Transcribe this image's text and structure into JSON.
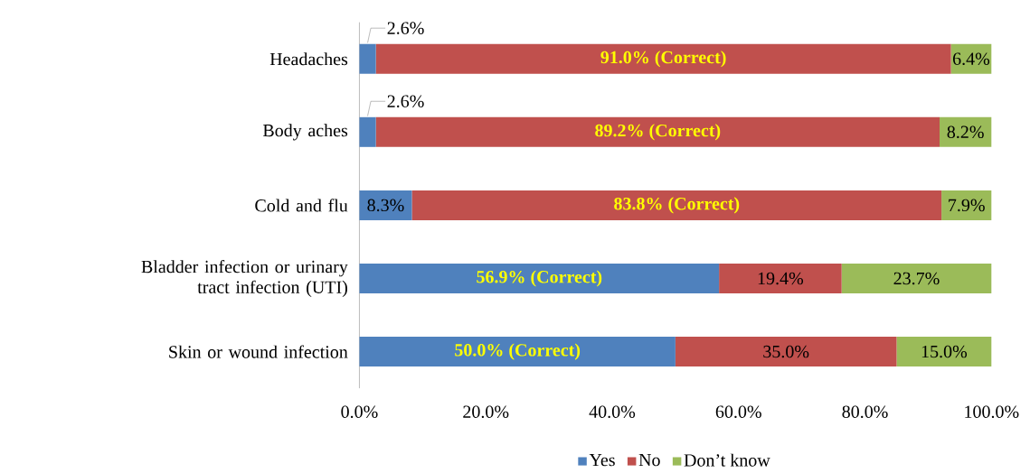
{
  "chart_data": {
    "type": "bar",
    "orientation": "horizontal",
    "stacked": true,
    "categories": [
      "Headaches",
      "Body aches",
      "Cold and flu",
      "Bladder infection or urinary tract infection (UTI)",
      "Skin or wound infection"
    ],
    "series": [
      {
        "name": "Yes",
        "color": "#4f81bd",
        "values": [
          2.6,
          2.6,
          8.3,
          56.9,
          50.0
        ],
        "value_labels": [
          "2.6%",
          "2.6%",
          "8.3%",
          "56.9% (Correct)",
          "50.0% (Correct)"
        ]
      },
      {
        "name": "No",
        "color": "#c0504d",
        "values": [
          91.0,
          89.2,
          83.8,
          19.4,
          35.0
        ],
        "value_labels": [
          "91.0% (Correct)",
          "89.2% (Correct)",
          "83.8% (Correct)",
          "19.4%",
          "35.0%"
        ]
      },
      {
        "name": "Don’t know",
        "color": "#9bbb59",
        "values": [
          6.4,
          8.2,
          7.9,
          23.7,
          15.0
        ],
        "value_labels": [
          "6.4%",
          "8.2%",
          "7.9%",
          "23.7%",
          "15.0%"
        ]
      }
    ],
    "xlim": [
      0,
      100
    ],
    "xticks": [
      {
        "value": 0,
        "label": "0.0%"
      },
      {
        "value": 20,
        "label": "20.0%"
      },
      {
        "value": 40,
        "label": "40.0%"
      },
      {
        "value": 60,
        "label": "60.0%"
      },
      {
        "value": 80,
        "label": "80.0%"
      },
      {
        "value": 100,
        "label": "100.0%"
      }
    ],
    "legend": "bottom"
  }
}
